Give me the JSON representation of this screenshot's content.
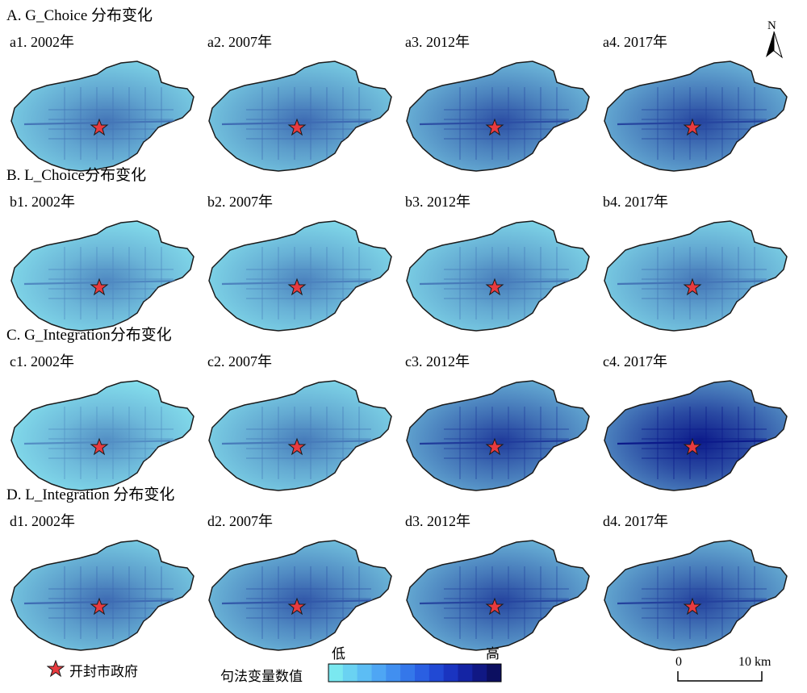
{
  "sections": [
    {
      "title": "A. G_Choice 分布变化",
      "panels": [
        {
          "label": "a1. 2002年",
          "level": 0.25
        },
        {
          "label": "a2. 2007年",
          "level": 0.3
        },
        {
          "label": "a3. 2012年",
          "level": 0.45
        },
        {
          "label": "a4. 2017年",
          "level": 0.5
        }
      ]
    },
    {
      "title": "B. L_Choice分布变化",
      "panels": [
        {
          "label": "b1. 2002年",
          "level": 0.15
        },
        {
          "label": "b2. 2007年",
          "level": 0.18
        },
        {
          "label": "b3. 2012年",
          "level": 0.22
        },
        {
          "label": "b4. 2017年",
          "level": 0.25
        }
      ]
    },
    {
      "title": "C. G_Integration分布变化",
      "panels": [
        {
          "label": "c1. 2002年",
          "level": 0.12
        },
        {
          "label": "c2. 2007年",
          "level": 0.22
        },
        {
          "label": "c3. 2012年",
          "level": 0.55
        },
        {
          "label": "c4. 2017年",
          "level": 0.78
        }
      ]
    },
    {
      "title": "D. L_Integration 分布变化",
      "panels": [
        {
          "label": "d1. 2002年",
          "level": 0.3
        },
        {
          "label": "d2. 2007年",
          "level": 0.4
        },
        {
          "label": "d3. 2012年",
          "level": 0.5
        },
        {
          "label": "d4. 2017年",
          "level": 0.52
        }
      ]
    }
  ],
  "north_arrow": {
    "label": "N"
  },
  "legend": {
    "star_label": "开封市政府",
    "bar_title": "句法变量数值",
    "low_label": "低",
    "high_label": "高",
    "colors": [
      "#7ae8f0",
      "#6ad2f2",
      "#5cbdf4",
      "#4ea6f4",
      "#418ff0",
      "#3477ea",
      "#2a5fe2",
      "#2149d4",
      "#1a34c0",
      "#1424a4",
      "#101884",
      "#0c0f60"
    ]
  },
  "scale_bar": {
    "start": "0",
    "end": "10 km"
  },
  "colors": {
    "star_fill": "#e83a3f",
    "outline": "#1a1a1a",
    "light": "#8ff0f5",
    "dark": "#0c1a8a"
  }
}
